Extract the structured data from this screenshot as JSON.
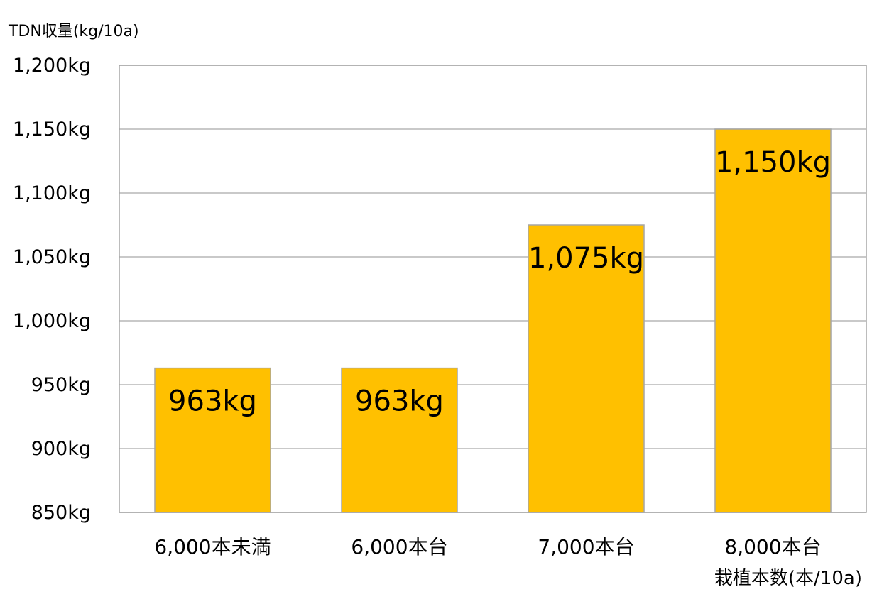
{
  "chart_data": {
    "type": "bar",
    "categories": [
      "6,000本未満",
      "6,000本台",
      "7,000本台",
      "8,000本台"
    ],
    "values": [
      963,
      963,
      1075,
      1150
    ],
    "data_labels": [
      "963kg",
      "963kg",
      "1,075kg",
      "1,150kg"
    ],
    "ylabel": "TDN収量(kg/10a)",
    "xlabel": "栽植本数(本/10a)",
    "ylim": [
      850,
      1200
    ],
    "yticks": [
      850,
      900,
      950,
      1000,
      1050,
      1100,
      1150,
      1200
    ],
    "ytick_labels": [
      "850kg",
      "900kg",
      "950kg",
      "1,000kg",
      "1,050kg",
      "1,100kg",
      "1,150kg",
      "1,200kg"
    ],
    "grid": true,
    "legend": "none"
  },
  "colors": {
    "bar_fill": "#FFC000",
    "bar_stroke": "#A6A6A6",
    "grid": "#B7B7B7",
    "frame": "#A6A6A6"
  }
}
